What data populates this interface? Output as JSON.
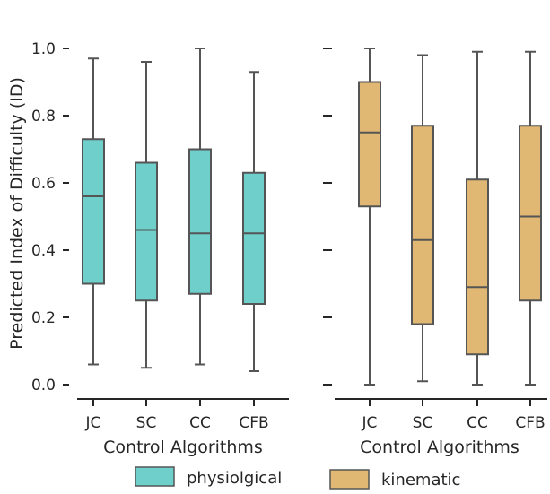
{
  "chart_data": [
    {
      "type": "box",
      "panel": "left",
      "categories": [
        "JC",
        "SC",
        "CC",
        "CFB"
      ],
      "xlabel": "Control Algorithms",
      "ylabel": "Predicted Index of Difficulty (ID)",
      "ylim": [
        0,
        1.0
      ],
      "yticks": [
        "0.0",
        "0.2",
        "0.4",
        "0.6",
        "0.8",
        "1.0"
      ],
      "series": [
        {
          "name": "physiolgical",
          "color": "#6fcfcb",
          "boxes": [
            {
              "min": 0.06,
              "q1": 0.3,
              "median": 0.56,
              "q3": 0.73,
              "max": 0.97
            },
            {
              "min": 0.05,
              "q1": 0.25,
              "median": 0.46,
              "q3": 0.66,
              "max": 0.96
            },
            {
              "min": 0.06,
              "q1": 0.27,
              "median": 0.45,
              "q3": 0.7,
              "max": 1.0
            },
            {
              "min": 0.04,
              "q1": 0.24,
              "median": 0.45,
              "q3": 0.63,
              "max": 0.93
            }
          ]
        }
      ]
    },
    {
      "type": "box",
      "panel": "right",
      "categories": [
        "JC",
        "SC",
        "CC",
        "CFB"
      ],
      "xlabel": "Control Algorithms",
      "ylabel": "",
      "ylim": [
        0,
        1.0
      ],
      "series": [
        {
          "name": "kinematic",
          "color": "#e0b874",
          "boxes": [
            {
              "min": 0.0,
              "q1": 0.53,
              "median": 0.75,
              "q3": 0.9,
              "max": 1.0
            },
            {
              "min": 0.01,
              "q1": 0.18,
              "median": 0.43,
              "q3": 0.77,
              "max": 0.98
            },
            {
              "min": 0.0,
              "q1": 0.09,
              "median": 0.29,
              "q3": 0.61,
              "max": 0.99
            },
            {
              "min": 0.0,
              "q1": 0.25,
              "median": 0.5,
              "q3": 0.77,
              "max": 0.99
            }
          ]
        }
      ]
    }
  ],
  "legend": {
    "placement": "bottom",
    "entries": [
      {
        "label": "physiolgical",
        "color": "#6fcfcb"
      },
      {
        "label": "kinematic",
        "color": "#e0b874"
      }
    ]
  },
  "colors": {
    "box_edge": "#555555",
    "axis": "#262626"
  }
}
